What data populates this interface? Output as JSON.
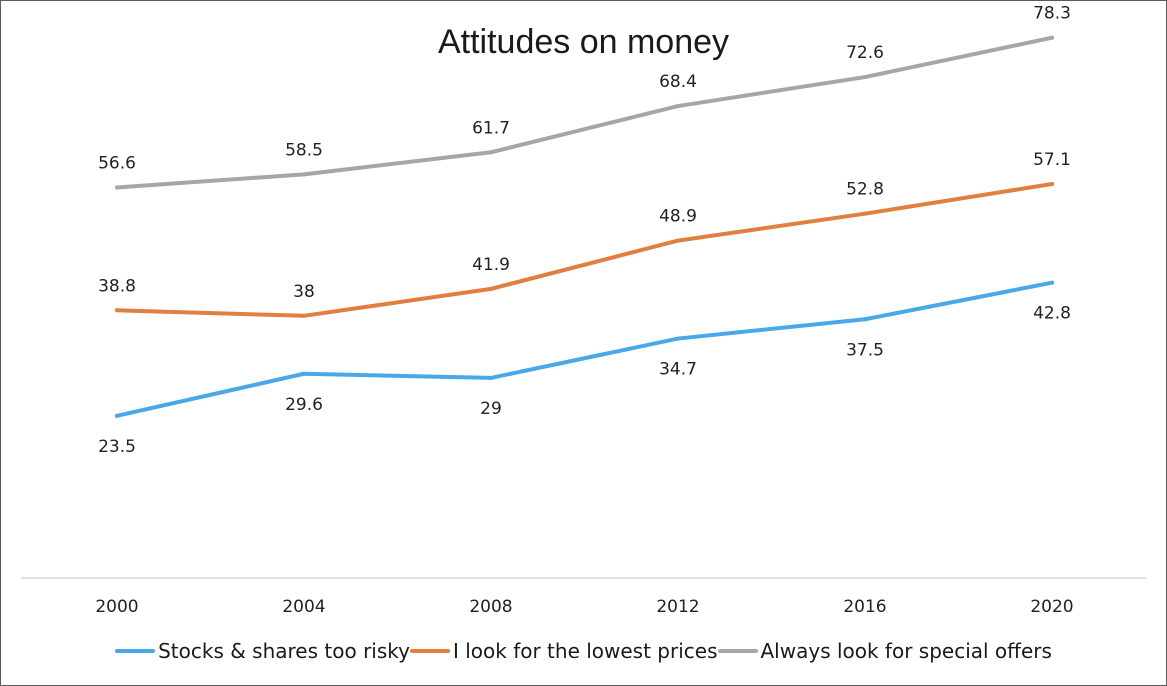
{
  "chart_data": {
    "type": "line",
    "title": "Attitudes on money",
    "categories": [
      "2000",
      "2004",
      "2008",
      "2012",
      "2016",
      "2020"
    ],
    "series": [
      {
        "name": "Stocks & shares too risky",
        "color": "#4aa8e8",
        "values": [
          23.5,
          29.6,
          29,
          34.7,
          37.5,
          42.8
        ],
        "label_position": "below"
      },
      {
        "name": "I look for the lowest prices",
        "color": "#e07f3e",
        "values": [
          38.8,
          38,
          41.9,
          48.9,
          52.8,
          57.1
        ],
        "label_position": "above"
      },
      {
        "name": "Always look for special offers",
        "color": "#a6a6a6",
        "values": [
          56.6,
          58.5,
          61.7,
          68.4,
          72.6,
          78.3
        ],
        "label_position": "above"
      }
    ],
    "xlabel": "",
    "ylabel": "",
    "ylim": [
      0,
      90
    ],
    "grid": false,
    "legend_position": "bottom"
  }
}
